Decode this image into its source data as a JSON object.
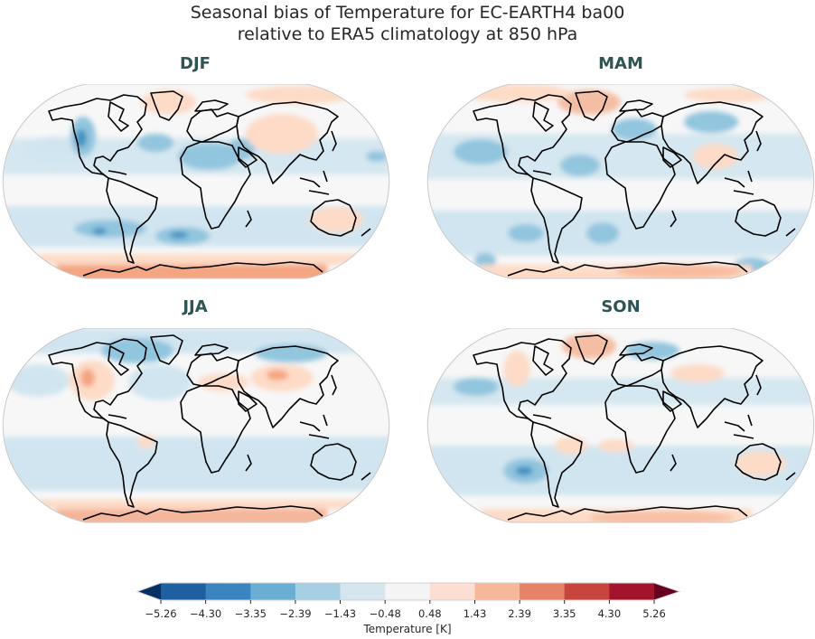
{
  "figure": {
    "title_line1": "Seasonal bias of Temperature for EC-EARTH4 ba00",
    "title_line2": "relative to ERA5 climatology at 850 hPa"
  },
  "panels": [
    {
      "label": "DJF"
    },
    {
      "label": "MAM"
    },
    {
      "label": "JJA"
    },
    {
      "label": "SON"
    }
  ],
  "colorbar": {
    "label": "Temperature [K]",
    "ticks": [
      "−5.26",
      "−4.30",
      "−3.35",
      "−2.39",
      "−1.43",
      "−0.48",
      "0.48",
      "1.43",
      "2.39",
      "3.35",
      "4.30",
      "5.26"
    ],
    "colors": [
      "#053061",
      "#2166ac",
      "#4393c3",
      "#92c5de",
      "#d1e5f0",
      "#f7f7f7",
      "#fddbc7",
      "#f4a582",
      "#d6604d",
      "#b2182b",
      "#67001f"
    ],
    "extend": "both"
  },
  "chart_data": {
    "type": "heatmap",
    "title": "Seasonal bias of Temperature for EC-EARTH4 ba00 relative to ERA5 climatology at 850 hPa",
    "projection": "Robinson (global map)",
    "subplots": [
      "DJF",
      "MAM",
      "JJA",
      "SON"
    ],
    "layout": "2x2",
    "colorbar": {
      "label": "Temperature [K]",
      "levels": [
        -5.26,
        -4.3,
        -3.35,
        -2.39,
        -1.43,
        -0.48,
        0.48,
        1.43,
        2.39,
        3.35,
        4.3,
        5.26
      ],
      "cmap": "RdBu_r",
      "extend": "both",
      "orientation": "horizontal"
    },
    "qualitative_patterns": {
      "DJF": "Mostly weak cold bias (-0.48 to -2.39 K) over oceans, western North America and North Africa/Middle East; warm bias (0.48 to 2.39 K) over Antarctica, Greenland/Arctic, Siberia/East Asia and Australia",
      "MAM": "Weak cold bias over much of the oceans, Europe and central Asia; warm bias over Greenland/Arctic, India/SE Asia and Antarctica",
      "JJA": "Cold bias over Arctic/northern high latitudes and subtropical oceans; warm bias over western US, Mediterranean/central Asia and Antarctica",
      "SON": "Weak cold bias over oceans and southern Pacific; warm bias over Greenland, northern South America, Australia and Antarctica"
    }
  }
}
